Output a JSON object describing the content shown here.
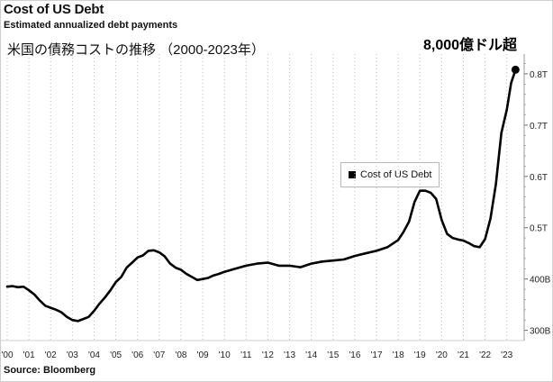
{
  "chart_data": {
    "type": "line",
    "title": "Cost of US Debt",
    "subtitle": "Estimated annualized debt payments",
    "annotation_title": "米国の債務コストの推移 （2000-2023年）",
    "callout": "8,000億ドル超",
    "source": "Source: Bloomberg",
    "legend": {
      "label": "Cost of US Debt",
      "placement": "top-right"
    },
    "x_tick_labels": [
      "'00",
      "'01",
      "'02",
      "'03",
      "'04",
      "'05",
      "'06",
      "'07",
      "'08",
      "'09",
      "'10",
      "'11",
      "'12",
      "'13",
      "'14",
      "'15",
      "'16",
      "'17",
      "'18",
      "'19",
      "'20",
      "'21",
      "'22",
      "'23"
    ],
    "y_tick_labels": [
      "300B",
      "400B",
      "0.5T",
      "0.6T",
      "0.7T",
      "0.8T"
    ],
    "y_tick_values": [
      300,
      400,
      500,
      600,
      700,
      800
    ],
    "xlim": [
      2000.0,
      2023.8
    ],
    "ylim": [
      280,
      835
    ],
    "grid": "vertical dotted",
    "series": [
      {
        "color": "#000000",
        "x": [
          2000.0,
          2000.25,
          2000.5,
          2000.75,
          2001.0,
          2001.25,
          2001.5,
          2001.75,
          2002.0,
          2002.25,
          2002.5,
          2002.75,
          2003.0,
          2003.25,
          2003.5,
          2003.75,
          2004.0,
          2004.25,
          2004.5,
          2004.75,
          2005.0,
          2005.25,
          2005.5,
          2005.75,
          2006.0,
          2006.25,
          2006.5,
          2006.75,
          2007.0,
          2007.25,
          2007.5,
          2007.75,
          2008.0,
          2008.25,
          2008.5,
          2008.75,
          2009.0,
          2009.25,
          2009.5,
          2009.75,
          2010.0,
          2010.5,
          2011.0,
          2011.5,
          2012.0,
          2012.5,
          2013.0,
          2013.5,
          2014.0,
          2014.5,
          2015.0,
          2015.5,
          2016.0,
          2016.5,
          2017.0,
          2017.5,
          2018.0,
          2018.25,
          2018.5,
          2018.75,
          2019.0,
          2019.25,
          2019.5,
          2019.75,
          2020.0,
          2020.25,
          2020.5,
          2020.75,
          2021.0,
          2021.25,
          2021.5,
          2021.75,
          2022.0,
          2022.25,
          2022.5,
          2022.75,
          2023.0,
          2023.2,
          2023.4
        ],
        "y": [
          385,
          386,
          384,
          385,
          378,
          370,
          358,
          348,
          344,
          340,
          335,
          326,
          320,
          318,
          322,
          326,
          338,
          352,
          364,
          378,
          394,
          404,
          422,
          432,
          442,
          446,
          455,
          456,
          452,
          444,
          430,
          422,
          418,
          410,
          404,
          398,
          400,
          402,
          407,
          410,
          414,
          420,
          426,
          430,
          432,
          426,
          426,
          423,
          430,
          434,
          436,
          438,
          445,
          450,
          455,
          462,
          476,
          492,
          512,
          550,
          572,
          572,
          568,
          556,
          515,
          488,
          480,
          477,
          475,
          470,
          464,
          462,
          478,
          518,
          585,
          685,
          730,
          782,
          808
        ]
      }
    ]
  }
}
